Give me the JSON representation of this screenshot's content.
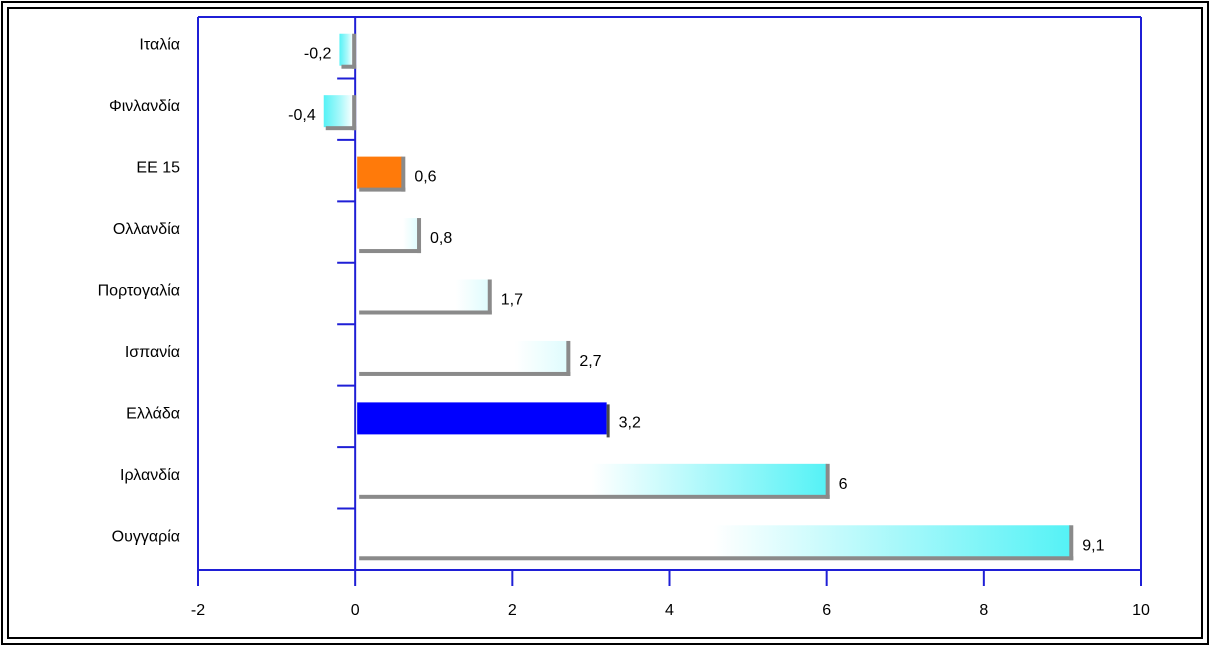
{
  "chart_data": {
    "type": "bar",
    "orientation": "horizontal",
    "categories": [
      "Ιταλία",
      "Φινλανδία",
      "ΕΕ 15",
      "Ολλανδία",
      "Πορτογαλία",
      "Ισπανία",
      "Ελλάδα",
      "Ιρλανδία",
      "Ουγγαρία"
    ],
    "values": [
      -0.2,
      -0.4,
      0.6,
      0.8,
      1.7,
      2.7,
      3.2,
      6,
      9.1
    ],
    "value_labels": [
      "-0,2",
      "-0,4",
      "0,6",
      "0,8",
      "1,7",
      "2,7",
      "3,2",
      "6",
      "9,1"
    ],
    "x_ticks": [
      "-2",
      "0",
      "2",
      "4",
      "6",
      "8",
      "10"
    ],
    "xlim": [
      -2,
      10
    ],
    "title": "",
    "xlabel": "",
    "ylabel": "",
    "grid": false,
    "bar_styles": [
      "cyan-gradient",
      "cyan-gradient",
      "solid-orange",
      "white-gray",
      "white-gray",
      "white-gray",
      "solid-blue",
      "cyan-gradient",
      "cyan-gradient"
    ],
    "colors": {
      "axis": "#1f1fd6",
      "ee15": "#ff7a0a",
      "greece": "#0000ff",
      "cyan": "#55f2f6",
      "shadow": "#8a8a8a",
      "frame": "#000000"
    }
  }
}
